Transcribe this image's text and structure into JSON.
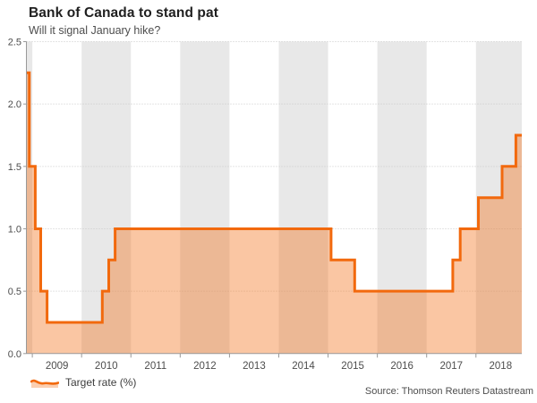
{
  "header": {
    "title": "Bank of Canada to stand pat",
    "subtitle": "Will it signal January hike?"
  },
  "legend": {
    "label": "Target rate (%)",
    "icon": "area-chart-icon"
  },
  "source": {
    "label": "Source: Thomson Reuters Datastream"
  },
  "colors": {
    "line": "#f2690d",
    "fill": "rgba(242,105,13,0.38)",
    "year_band": "#e8e8e8",
    "gridline": "#c9c9c9",
    "axis": "#999999",
    "title_text": "#1f1f1f",
    "label_text": "#4d4d4d"
  },
  "chart_data": {
    "type": "area",
    "step": true,
    "title": "Bank of Canada to stand pat",
    "subtitle": "Will it signal January hike?",
    "ylabel": "Target rate (%)",
    "xlabel": "",
    "x_domain": [
      2008.88,
      2018.93
    ],
    "y_domain": [
      0,
      2.5
    ],
    "y_ticks": [
      "0.0",
      "0.5",
      "1.0",
      "1.5",
      "2.0",
      "2.5"
    ],
    "y_tick_values": [
      0,
      0.5,
      1,
      1.5,
      2,
      2.5
    ],
    "x_tick_years": [
      2009,
      2010,
      2011,
      2012,
      2013,
      2014,
      2015,
      2016,
      2017,
      2018
    ],
    "shaded_years": [
      2008,
      2010,
      2012,
      2014,
      2016,
      2018
    ],
    "grid": "dotted-horizontal",
    "legend_position": "bottom-left",
    "series": [
      {
        "name": "Target rate (%)",
        "note": "step points as [decimal_year, rate_percent]",
        "points": [
          [
            2008.88,
            2.25
          ],
          [
            2008.94,
            1.5
          ],
          [
            2009.06,
            1.0
          ],
          [
            2009.17,
            0.5
          ],
          [
            2009.3,
            0.25
          ],
          [
            2010.42,
            0.5
          ],
          [
            2010.55,
            0.75
          ],
          [
            2010.68,
            1.0
          ],
          [
            2015.06,
            0.75
          ],
          [
            2015.54,
            0.5
          ],
          [
            2017.53,
            0.75
          ],
          [
            2017.68,
            1.0
          ],
          [
            2018.05,
            1.25
          ],
          [
            2018.53,
            1.5
          ],
          [
            2018.81,
            1.75
          ]
        ],
        "x_end": 2018.93
      }
    ]
  }
}
